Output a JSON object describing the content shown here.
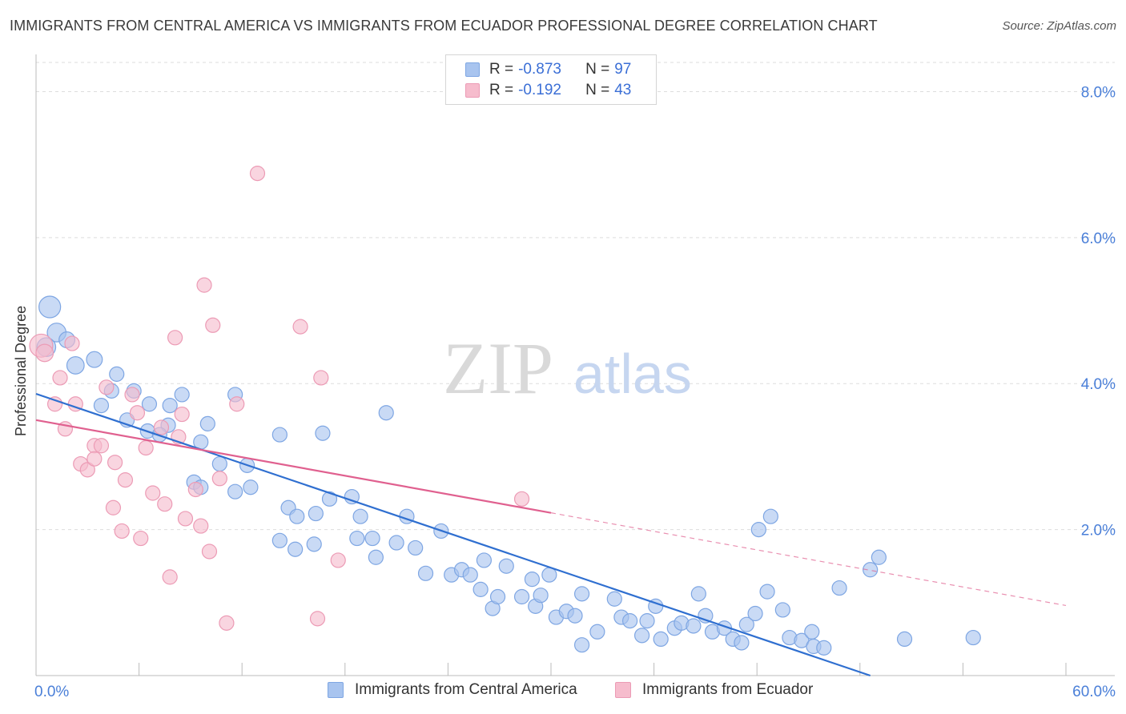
{
  "title": "IMMIGRANTS FROM CENTRAL AMERICA VS IMMIGRANTS FROM ECUADOR PROFESSIONAL DEGREE CORRELATION CHART",
  "source": "Source: ZipAtlas.com",
  "watermark": {
    "zip": "ZIP",
    "atlas": "atlas"
  },
  "colors": {
    "blue_fill": "#a8c4ef",
    "blue_stroke": "#7ea6e3",
    "blue_line": "#2f6fd0",
    "pink_fill": "#f6bccd",
    "pink_stroke": "#ec9bb5",
    "pink_line": "#e0608f",
    "tick_label": "#4a7fd8",
    "grid": "#dddddd"
  },
  "legend_top": {
    "rows": [
      {
        "r_label": "R =",
        "r_value": "-0.873",
        "n_label": "N =",
        "n_value": "97"
      },
      {
        "r_label": "R =",
        "r_value": "-0.192",
        "n_label": "N =",
        "n_value": "43"
      }
    ]
  },
  "legend_bottom": {
    "items": [
      "Immigrants from Central America",
      "Immigrants from Ecuador"
    ]
  },
  "chart_data": {
    "type": "scatter",
    "title": "IMMIGRANTS FROM CENTRAL AMERICA VS IMMIGRANTS FROM ECUADOR PROFESSIONAL DEGREE CORRELATION CHART",
    "xlabel": "",
    "ylabel": "Professional Degree",
    "xlim": [
      0,
      60
    ],
    "ylim": [
      0,
      8.4
    ],
    "x_tick_labels": [
      "0.0%",
      "60.0%"
    ],
    "y_ticks": [
      2,
      4,
      6,
      8
    ],
    "y_tick_labels": [
      "2.0%",
      "4.0%",
      "6.0%",
      "8.0%"
    ],
    "grid": "horizontal dashed",
    "legend_position": "top-center",
    "series": [
      {
        "name": "Immigrants from Central America",
        "points": [
          [
            0.8,
            5.05,
            1.5
          ],
          [
            1.2,
            4.7,
            1.3
          ],
          [
            1.8,
            4.6,
            1.1
          ],
          [
            2.3,
            4.25,
            1.2
          ],
          [
            3.4,
            4.33,
            1.1
          ],
          [
            4.7,
            4.13,
            1
          ],
          [
            3.8,
            3.7,
            1
          ],
          [
            4.4,
            3.9,
            1
          ],
          [
            5.7,
            3.9,
            1
          ],
          [
            5.3,
            3.5,
            1
          ],
          [
            6.6,
            3.72,
            1
          ],
          [
            7.7,
            3.43,
            1
          ],
          [
            7.8,
            3.7,
            1
          ],
          [
            8.5,
            3.85,
            1
          ],
          [
            10,
            3.45,
            1
          ],
          [
            9.6,
            3.2,
            1
          ],
          [
            6.5,
            3.35,
            1
          ],
          [
            7.2,
            3.3,
            1
          ],
          [
            11.6,
            3.85,
            1
          ],
          [
            14.2,
            3.3,
            1
          ],
          [
            16.7,
            3.32,
            1
          ],
          [
            20.4,
            3.6,
            1
          ],
          [
            9.2,
            2.65,
            1
          ],
          [
            10.7,
            2.9,
            1
          ],
          [
            12.3,
            2.88,
            1
          ],
          [
            9.6,
            2.58,
            1
          ],
          [
            11.6,
            2.52,
            1
          ],
          [
            12.5,
            2.58,
            1
          ],
          [
            14.7,
            2.3,
            1
          ],
          [
            15.2,
            2.18,
            1
          ],
          [
            16.3,
            2.22,
            1
          ],
          [
            17.1,
            2.42,
            1
          ],
          [
            18.4,
            2.45,
            1
          ],
          [
            18.9,
            2.18,
            1
          ],
          [
            14.2,
            1.85,
            1
          ],
          [
            15.1,
            1.73,
            1
          ],
          [
            16.2,
            1.8,
            1
          ],
          [
            18.7,
            1.88,
            1
          ],
          [
            19.6,
            1.88,
            1
          ],
          [
            19.8,
            1.62,
            1
          ],
          [
            21,
            1.82,
            1
          ],
          [
            21.6,
            2.18,
            1
          ],
          [
            22.1,
            1.75,
            1
          ],
          [
            22.7,
            1.4,
            1
          ],
          [
            23.6,
            1.98,
            1
          ],
          [
            24.2,
            1.38,
            1
          ],
          [
            24.8,
            1.45,
            1
          ],
          [
            25.3,
            1.38,
            1
          ],
          [
            26.1,
            1.58,
            1
          ],
          [
            25.9,
            1.18,
            1
          ],
          [
            26.6,
            0.92,
            1
          ],
          [
            26.9,
            1.08,
            1
          ],
          [
            27.4,
            1.5,
            1
          ],
          [
            28.3,
            1.08,
            1
          ],
          [
            28.9,
            1.32,
            1
          ],
          [
            29.1,
            0.95,
            1
          ],
          [
            29.4,
            1.1,
            1
          ],
          [
            29.9,
            1.38,
            1
          ],
          [
            30.3,
            0.8,
            1
          ],
          [
            30.9,
            0.88,
            1
          ],
          [
            31.4,
            0.82,
            1
          ],
          [
            31.8,
            0.42,
            1
          ],
          [
            31.8,
            1.12,
            1
          ],
          [
            32.7,
            0.6,
            1
          ],
          [
            33.7,
            1.05,
            1
          ],
          [
            34.1,
            0.8,
            1
          ],
          [
            34.6,
            0.75,
            1
          ],
          [
            35.3,
            0.55,
            1
          ],
          [
            35.6,
            0.75,
            1
          ],
          [
            36.1,
            0.95,
            1
          ],
          [
            36.4,
            0.5,
            1
          ],
          [
            37.2,
            0.65,
            1
          ],
          [
            37.6,
            0.72,
            1
          ],
          [
            38.3,
            0.68,
            1
          ],
          [
            38.6,
            1.12,
            1
          ],
          [
            39,
            0.82,
            1
          ],
          [
            39.4,
            0.6,
            1
          ],
          [
            40.1,
            0.65,
            1
          ],
          [
            40.6,
            0.5,
            1
          ],
          [
            41.1,
            0.45,
            1
          ],
          [
            41.4,
            0.7,
            1
          ],
          [
            41.9,
            0.85,
            1
          ],
          [
            42.6,
            1.15,
            1
          ],
          [
            42.1,
            2.0,
            1
          ],
          [
            42.8,
            2.18,
            1
          ],
          [
            43.5,
            0.9,
            1
          ],
          [
            43.9,
            0.52,
            1
          ],
          [
            44.6,
            0.48,
            1
          ],
          [
            45.2,
            0.6,
            1
          ],
          [
            45.3,
            0.4,
            1
          ],
          [
            45.9,
            0.38,
            1
          ],
          [
            46.8,
            1.2,
            1
          ],
          [
            48.6,
            1.45,
            1
          ],
          [
            49.1,
            1.62,
            1
          ],
          [
            50.6,
            0.5,
            1
          ],
          [
            54.6,
            0.52,
            1
          ],
          [
            0.6,
            4.5,
            1.3
          ]
        ],
        "trend": {
          "x": [
            0,
            48.6
          ],
          "y": [
            3.86,
            0
          ]
        }
      },
      {
        "name": "Immigrants from Ecuador",
        "points": [
          [
            0.3,
            4.52,
            1.6
          ],
          [
            0.5,
            4.42,
            1.2
          ],
          [
            1.4,
            4.08,
            1
          ],
          [
            2.1,
            4.55,
            1
          ],
          [
            1.1,
            3.72,
            1
          ],
          [
            2.3,
            3.72,
            1
          ],
          [
            1.7,
            3.38,
            1
          ],
          [
            2.6,
            2.9,
            1
          ],
          [
            3,
            2.82,
            1
          ],
          [
            3.4,
            3.15,
            1
          ],
          [
            3.4,
            2.97,
            1
          ],
          [
            3.8,
            3.15,
            1
          ],
          [
            4.1,
            3.95,
            1
          ],
          [
            4.5,
            2.3,
            1
          ],
          [
            4.6,
            2.92,
            1
          ],
          [
            5,
            1.98,
            1
          ],
          [
            5.2,
            2.68,
            1
          ],
          [
            5.6,
            3.85,
            1
          ],
          [
            5.9,
            3.6,
            1
          ],
          [
            6.1,
            1.88,
            1
          ],
          [
            6.4,
            3.12,
            1
          ],
          [
            6.8,
            2.5,
            1
          ],
          [
            7.3,
            3.4,
            1
          ],
          [
            7.5,
            2.35,
            1
          ],
          [
            7.8,
            1.35,
            1
          ],
          [
            8.1,
            4.63,
            1
          ],
          [
            8.5,
            3.58,
            1
          ],
          [
            8.3,
            3.27,
            1
          ],
          [
            8.7,
            2.15,
            1
          ],
          [
            9.3,
            2.55,
            1
          ],
          [
            9.6,
            2.05,
            1
          ],
          [
            9.8,
            5.35,
            1
          ],
          [
            10.1,
            1.7,
            1
          ],
          [
            10.3,
            4.8,
            1
          ],
          [
            10.7,
            2.7,
            1
          ],
          [
            11.1,
            0.72,
            1
          ],
          [
            11.7,
            3.72,
            1
          ],
          [
            12.9,
            6.88,
            1
          ],
          [
            15.4,
            4.78,
            1
          ],
          [
            16.4,
            0.78,
            1
          ],
          [
            16.6,
            4.08,
            1
          ],
          [
            17.6,
            1.58,
            1
          ],
          [
            28.3,
            2.42,
            1
          ]
        ],
        "trend": {
          "x": [
            0,
            30
          ],
          "y": [
            3.5,
            2.23
          ]
        },
        "trend_extension": {
          "x": [
            30,
            60
          ],
          "y": [
            2.23,
            0.96
          ]
        }
      }
    ]
  }
}
